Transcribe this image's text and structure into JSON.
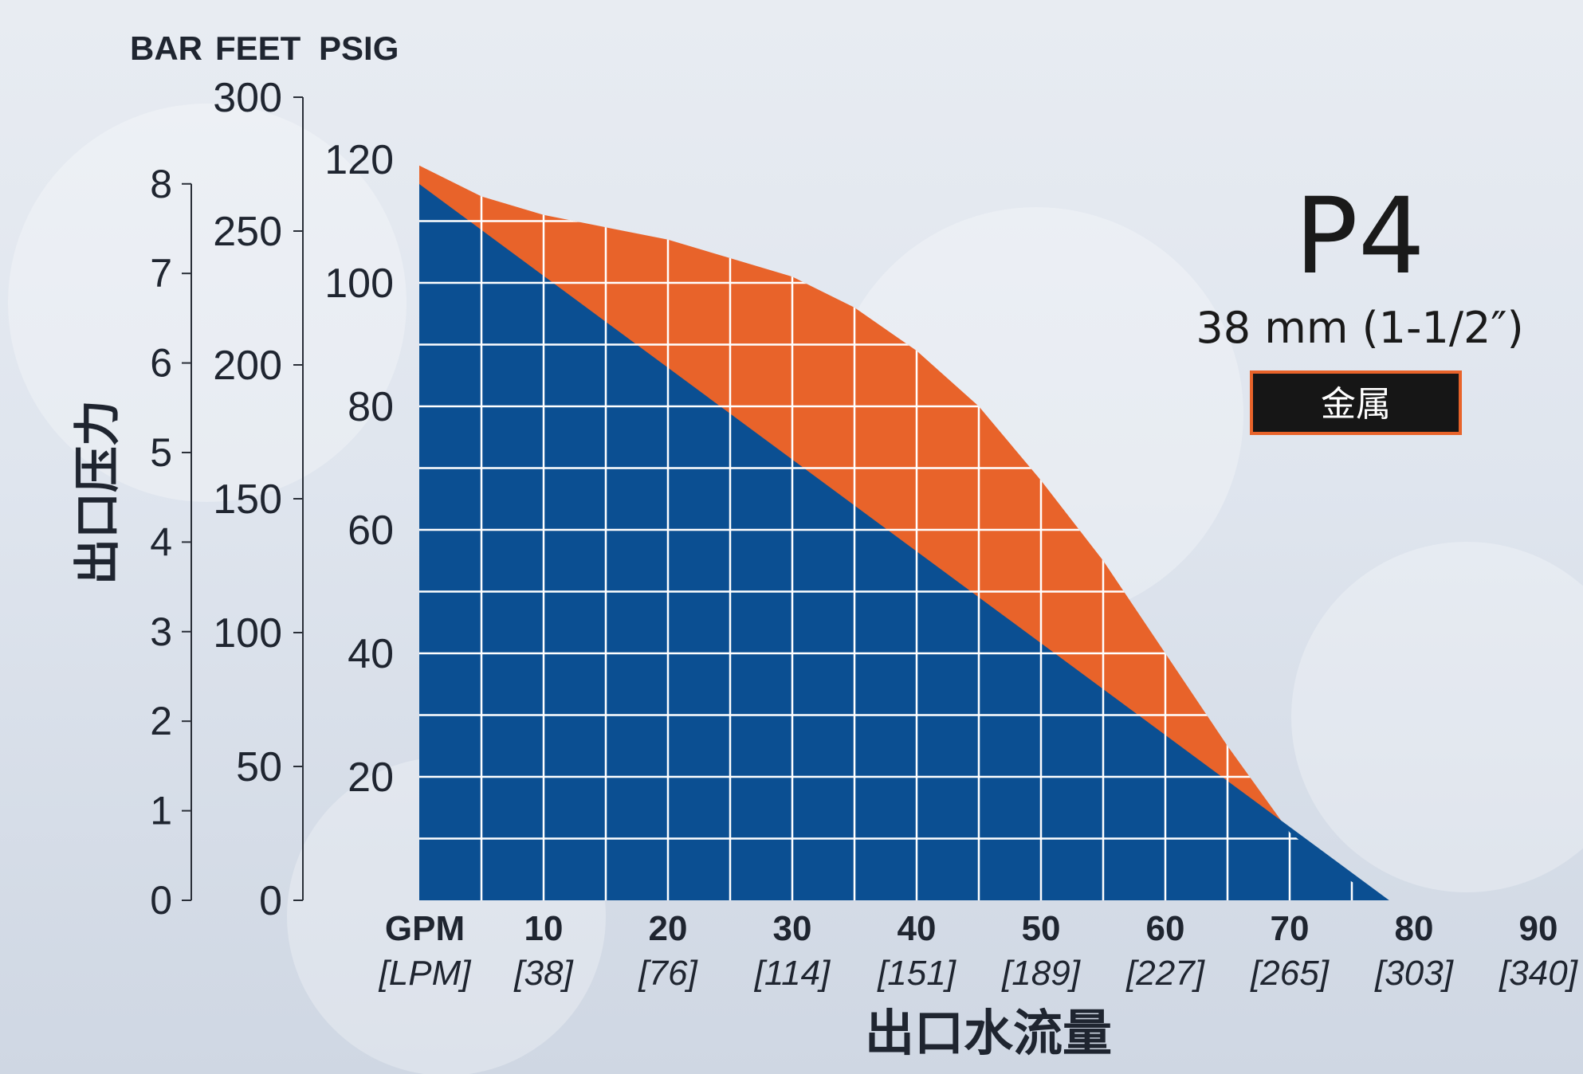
{
  "chart_data": {
    "type": "area",
    "model": "P4",
    "size": "38 mm (1-1/2″)",
    "material_badge": "金属",
    "ylabel": "出口压力",
    "xlabel": "出口水流量",
    "y_axes": [
      {
        "unit": "BAR",
        "range": [
          0,
          8
        ],
        "ticks": [
          "0",
          "1",
          "2",
          "3",
          "4",
          "5",
          "6",
          "7",
          "8"
        ]
      },
      {
        "unit": "FEET",
        "range": [
          0,
          300
        ],
        "ticks": [
          "0",
          "50",
          "100",
          "150",
          "200",
          "250",
          "300"
        ]
      },
      {
        "unit": "PSIG",
        "range": [
          0,
          120
        ],
        "ticks": [
          "20",
          "40",
          "60",
          "80",
          "100",
          "120"
        ]
      }
    ],
    "x_axis": {
      "unit": "GPM",
      "unit_alt": "[LPM]",
      "range": [
        0,
        90
      ],
      "ticks": [
        {
          "gpm": "10",
          "lpm": "[38]"
        },
        {
          "gpm": "20",
          "lpm": "[76]"
        },
        {
          "gpm": "30",
          "lpm": "[114]"
        },
        {
          "gpm": "40",
          "lpm": "[151]"
        },
        {
          "gpm": "50",
          "lpm": "[189]"
        },
        {
          "gpm": "60",
          "lpm": "[227]"
        },
        {
          "gpm": "70",
          "lpm": "[265]"
        },
        {
          "gpm": "80",
          "lpm": "[303]"
        },
        {
          "gpm": "90",
          "lpm": "[340]"
        }
      ]
    },
    "grid": true,
    "series": [
      {
        "color": "#e8632a",
        "x": [
          0,
          5,
          10,
          15,
          20,
          25,
          30,
          35,
          40,
          45,
          50,
          55,
          60,
          65,
          70,
          75,
          78
        ],
        "y": [
          119,
          114,
          111,
          109,
          107,
          104,
          101,
          96,
          89,
          80,
          68,
          55,
          40,
          25,
          11,
          3,
          0
        ]
      },
      {
        "color": "#0b4f92",
        "x": [
          0,
          78
        ],
        "y": [
          116,
          0
        ]
      }
    ]
  }
}
